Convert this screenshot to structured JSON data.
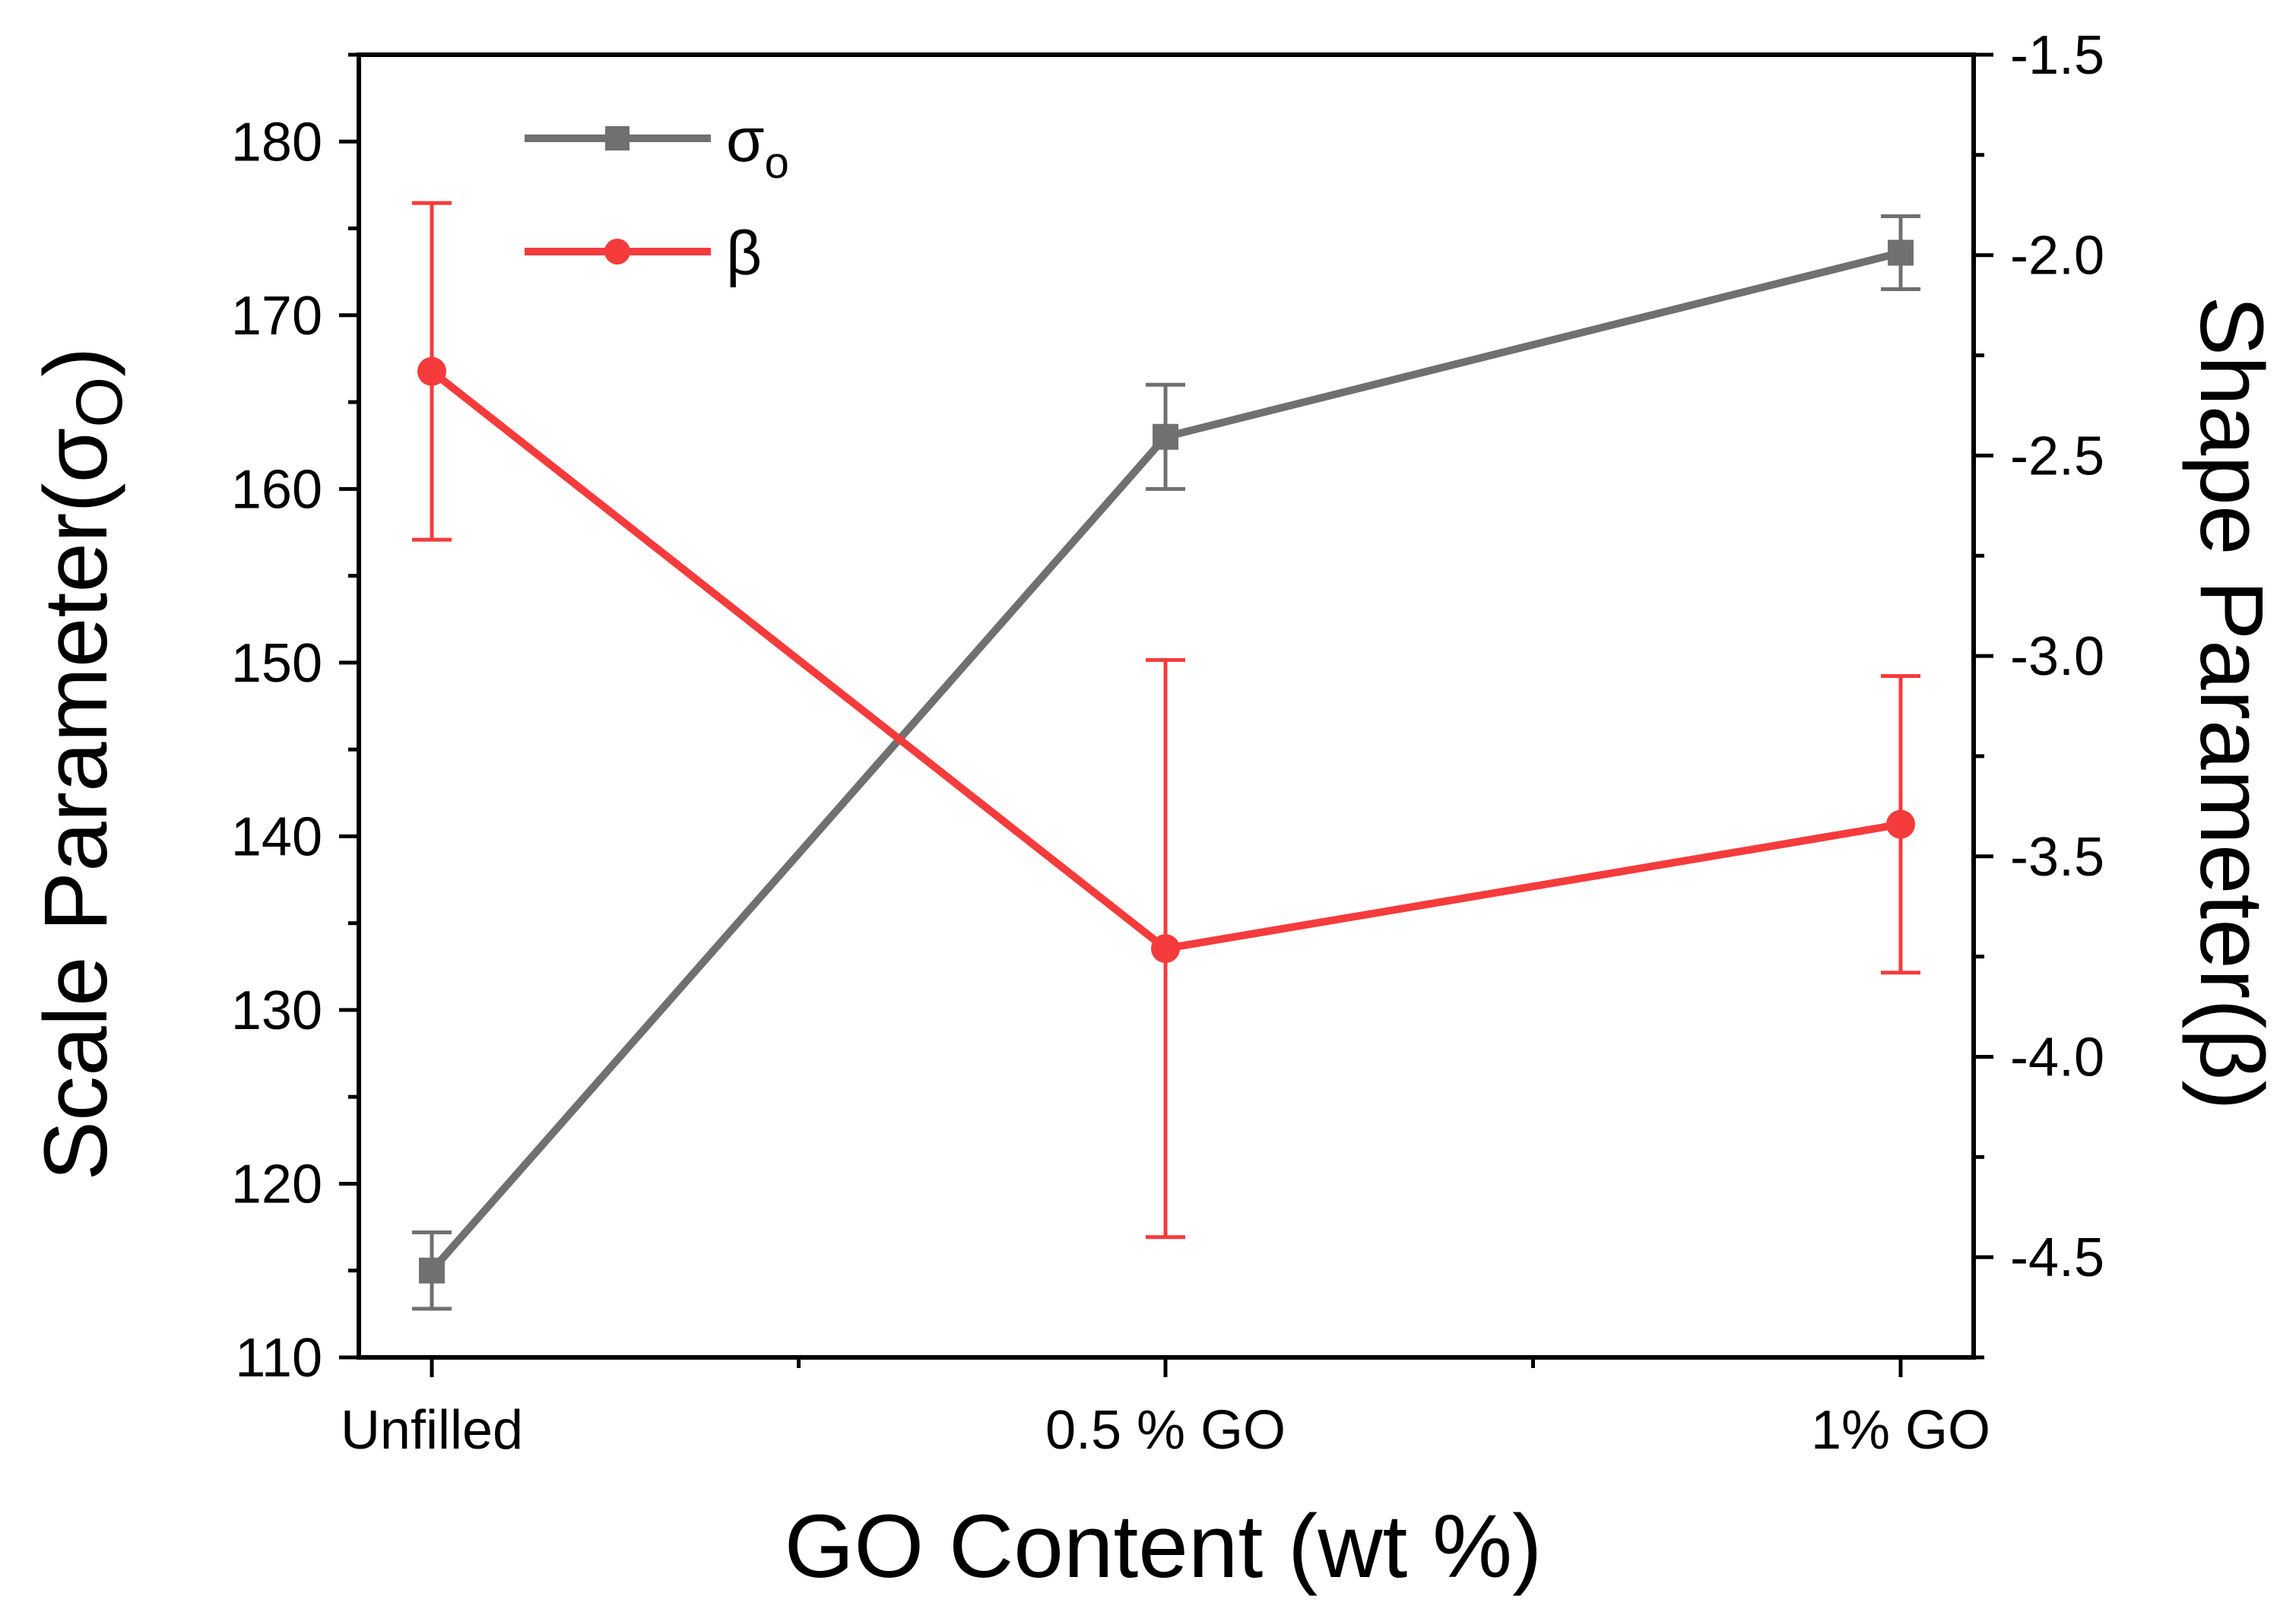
{
  "chart_data": {
    "type": "line",
    "title": "",
    "xlabel": "GO Content (wt %)",
    "ylabel": "Scale Parameter(σ",
    "ylabel_sub": "O",
    "ylabel_close": ")",
    "y2label": "Shape Parameter(β)",
    "categories": [
      "Unfilled",
      "0.5 % GO",
      "1% GO"
    ],
    "ylim": [
      110,
      185
    ],
    "yticks": [
      "110",
      "120",
      "130",
      "140",
      "150",
      "160",
      "170",
      "180"
    ],
    "y2lim": [
      -4.75,
      -1.5
    ],
    "y2ticks": [
      "-4.5",
      "-4.0",
      "-3.5",
      "-3.0",
      "-2.5",
      "-2.0",
      "-1.5"
    ],
    "legend_position": "top-left",
    "series": [
      {
        "name": "σ",
        "name_sub": "o",
        "axis": "left",
        "color": "#707070",
        "marker": "square",
        "values": [
          115.0,
          163.0,
          173.6
        ],
        "errors": [
          2.2,
          3.0,
          2.1
        ]
      },
      {
        "name": "β",
        "axis": "right",
        "color": "#f53b3b",
        "marker": "circle",
        "values": [
          -2.29,
          -3.73,
          -3.42
        ],
        "errors": [
          0.42,
          0.72,
          0.37
        ]
      }
    ]
  }
}
